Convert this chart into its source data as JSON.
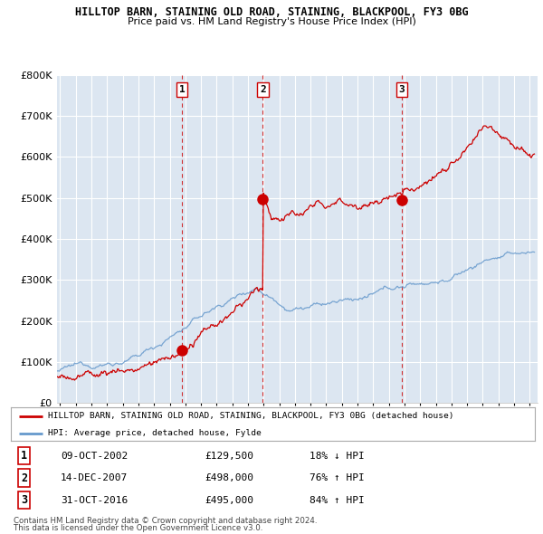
{
  "title_line1": "HILLTOP BARN, STAINING OLD ROAD, STAINING, BLACKPOOL, FY3 0BG",
  "title_line2": "Price paid vs. HM Land Registry's House Price Index (HPI)",
  "background_color": "#ffffff",
  "plot_bg_color": "#dce6f1",
  "grid_color": "#ffffff",
  "hpi_color": "#6699cc",
  "sale_color": "#cc0000",
  "sale_points": [
    {
      "year": 2002.78,
      "price": 129500,
      "label": "1"
    },
    {
      "year": 2007.95,
      "price": 498000,
      "label": "2"
    },
    {
      "year": 2016.83,
      "price": 495000,
      "label": "3"
    }
  ],
  "transactions": [
    {
      "label": "1",
      "date": "09-OCT-2002",
      "price": "£129,500",
      "change": "18% ↓ HPI"
    },
    {
      "label": "2",
      "date": "14-DEC-2007",
      "price": "£498,000",
      "change": "76% ↑ HPI"
    },
    {
      "label": "3",
      "date": "31-OCT-2016",
      "price": "£495,000",
      "change": "84% ↑ HPI"
    }
  ],
  "legend_entry1": "HILLTOP BARN, STAINING OLD ROAD, STAINING, BLACKPOOL, FY3 0BG (detached house)",
  "legend_entry2": "HPI: Average price, detached house, Fylde",
  "footer_line1": "Contains HM Land Registry data © Crown copyright and database right 2024.",
  "footer_line2": "This data is licensed under the Open Government Licence v3.0.",
  "ylim": [
    0,
    800000
  ],
  "yticks": [
    0,
    100000,
    200000,
    300000,
    400000,
    500000,
    600000,
    700000,
    800000
  ],
  "xmin": 1994.8,
  "xmax": 2025.5
}
